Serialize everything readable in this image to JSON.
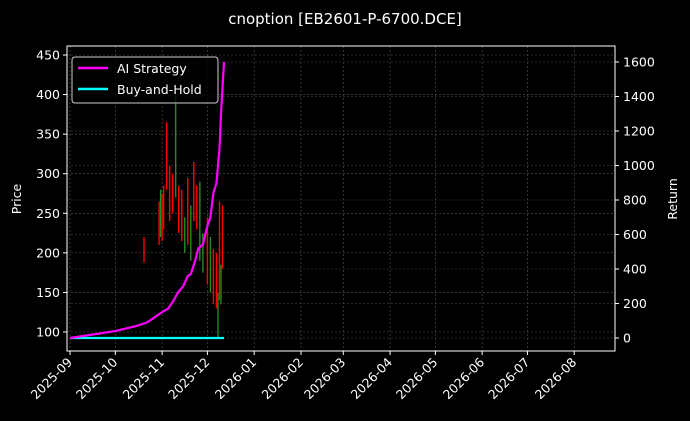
{
  "chart_data": {
    "type": "line",
    "title": "cnoption [EB2601-P-6700.DCE]",
    "xlabel": "",
    "ylabel": "Price",
    "ylabel_right": "Return",
    "ylim": [
      87,
      455
    ],
    "ylim_right": [
      -55,
      1650
    ],
    "xlim": [
      "2025-08-30",
      "2026-08-28"
    ],
    "grid": true,
    "legend_position": "upper left",
    "x_ticks": [
      "2025-09",
      "2025-10",
      "2025-11",
      "2025-12",
      "2026-01",
      "2026-02",
      "2026-03",
      "2026-04",
      "2026-05",
      "2026-06",
      "2026-07",
      "2026-08"
    ],
    "y_ticks": [
      100,
      150,
      200,
      250,
      300,
      350,
      400,
      450
    ],
    "y_ticks_right": [
      0,
      200,
      400,
      600,
      800,
      1000,
      1200,
      1400,
      1600
    ],
    "series": [
      {
        "name": "AI Strategy",
        "axis": "right",
        "color": "#ff00ff",
        "x": [
          "2025-09-01",
          "2025-10-01",
          "2025-10-15",
          "2025-10-22",
          "2025-10-27",
          "2025-11-01",
          "2025-11-05",
          "2025-11-08",
          "2025-11-12",
          "2025-11-15",
          "2025-11-18",
          "2025-11-20",
          "2025-11-23",
          "2025-11-25",
          "2025-11-28",
          "2025-12-01",
          "2025-12-03",
          "2025-12-05",
          "2025-12-07",
          "2025-12-09",
          "2025-12-10",
          "2025-12-11",
          "2025-12-12"
        ],
        "values": [
          0,
          40,
          70,
          90,
          120,
          150,
          170,
          210,
          270,
          300,
          360,
          370,
          450,
          520,
          540,
          650,
          700,
          840,
          900,
          1100,
          1300,
          1450,
          1600
        ]
      },
      {
        "name": "Buy-and-Hold",
        "axis": "right",
        "color": "#00ffff",
        "x": [
          "2025-09-01",
          "2025-12-12"
        ],
        "values": [
          0,
          0
        ]
      }
    ],
    "candles": {
      "axis": "left",
      "up_color": "#228b22",
      "down_color": "#ff0000",
      "items": [
        {
          "x": "2025-10-20",
          "low": 188,
          "high": 220,
          "dir": "down"
        },
        {
          "x": "2025-10-30",
          "low": 210,
          "high": 265,
          "dir": "down"
        },
        {
          "x": "2025-10-31",
          "low": 220,
          "high": 280,
          "dir": "up"
        },
        {
          "x": "2025-11-01",
          "low": 215,
          "high": 275,
          "dir": "down"
        },
        {
          "x": "2025-11-02",
          "low": 230,
          "high": 285,
          "dir": "down"
        },
        {
          "x": "2025-11-04",
          "low": 280,
          "high": 365,
          "dir": "down"
        },
        {
          "x": "2025-11-06",
          "low": 240,
          "high": 310,
          "dir": "down"
        },
        {
          "x": "2025-11-08",
          "low": 250,
          "high": 300,
          "dir": "down"
        },
        {
          "x": "2025-11-10",
          "low": 270,
          "high": 400,
          "dir": "up"
        },
        {
          "x": "2025-11-12",
          "low": 225,
          "high": 285,
          "dir": "down"
        },
        {
          "x": "2025-11-14",
          "low": 215,
          "high": 280,
          "dir": "down"
        },
        {
          "x": "2025-11-16",
          "low": 200,
          "high": 245,
          "dir": "up"
        },
        {
          "x": "2025-11-18",
          "low": 210,
          "high": 295,
          "dir": "down"
        },
        {
          "x": "2025-11-20",
          "low": 190,
          "high": 260,
          "dir": "up"
        },
        {
          "x": "2025-11-22",
          "low": 240,
          "high": 315,
          "dir": "down"
        },
        {
          "x": "2025-11-24",
          "low": 230,
          "high": 285,
          "dir": "down"
        },
        {
          "x": "2025-11-26",
          "low": 190,
          "high": 290,
          "dir": "up"
        },
        {
          "x": "2025-11-28",
          "low": 175,
          "high": 225,
          "dir": "up"
        },
        {
          "x": "2025-12-01",
          "low": 160,
          "high": 245,
          "dir": "down"
        },
        {
          "x": "2025-12-03",
          "low": 150,
          "high": 220,
          "dir": "up"
        },
        {
          "x": "2025-12-05",
          "low": 135,
          "high": 205,
          "dir": "down"
        },
        {
          "x": "2025-12-07",
          "low": 130,
          "high": 200,
          "dir": "down"
        },
        {
          "x": "2025-12-08",
          "low": 92,
          "high": 150,
          "dir": "up"
        },
        {
          "x": "2025-12-09",
          "low": 140,
          "high": 265,
          "dir": "down"
        },
        {
          "x": "2025-12-10",
          "low": 135,
          "high": 185,
          "dir": "up"
        },
        {
          "x": "2025-12-11",
          "low": 180,
          "high": 260,
          "dir": "down"
        }
      ]
    }
  }
}
